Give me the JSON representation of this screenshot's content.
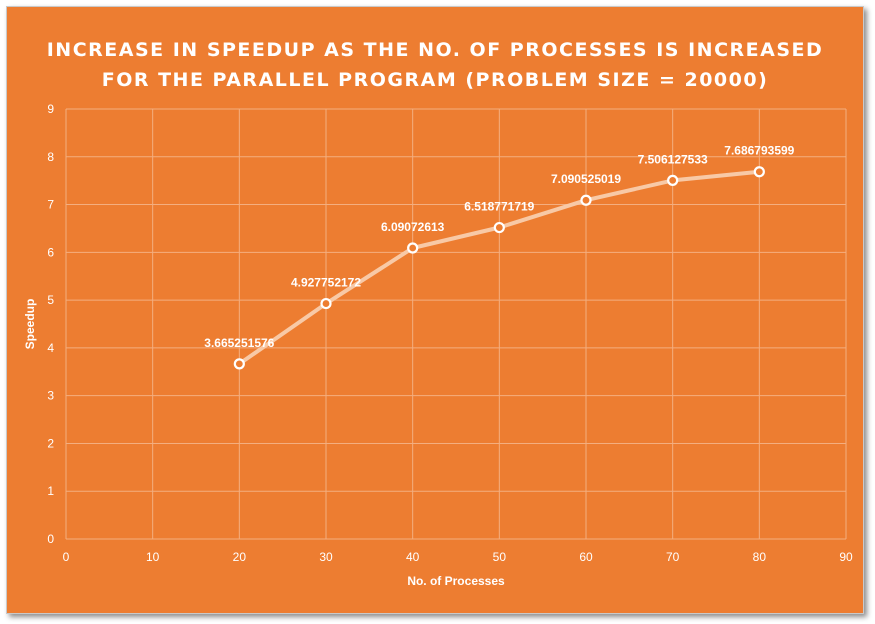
{
  "chart_data": {
    "type": "line",
    "title": [
      "INCREASE IN SPEEDUP AS THE NO. OF PROCESSES IS INCREASED",
      "FOR THE PARALLEL PROGRAM (PROBLEM SIZE = 20000)"
    ],
    "xlabel": "No. of Processes",
    "ylabel": "Speedup",
    "xlim": [
      0,
      90
    ],
    "ylim": [
      0,
      9
    ],
    "xticks": [
      0,
      10,
      20,
      30,
      40,
      50,
      60,
      70,
      80,
      90
    ],
    "yticks": [
      0,
      1,
      2,
      3,
      4,
      5,
      6,
      7,
      8,
      9
    ],
    "grid": true,
    "legend": "none",
    "colors": {
      "background": "#ed7d31",
      "line": "#f8c9a6",
      "grid": "#f4ae7f",
      "text": "#ffffff"
    },
    "series": [
      {
        "x": [
          20,
          30,
          40,
          50,
          60,
          70,
          80
        ],
        "values": [
          3.665251576,
          4.927752172,
          6.09072613,
          6.518771719,
          7.090525019,
          7.506127533,
          7.686793599
        ],
        "labels": [
          "3.665251576",
          "4.927752172",
          "6.09072613",
          "6.518771719",
          "7.090525019",
          "7.506127533",
          "7.686793599"
        ]
      }
    ]
  }
}
